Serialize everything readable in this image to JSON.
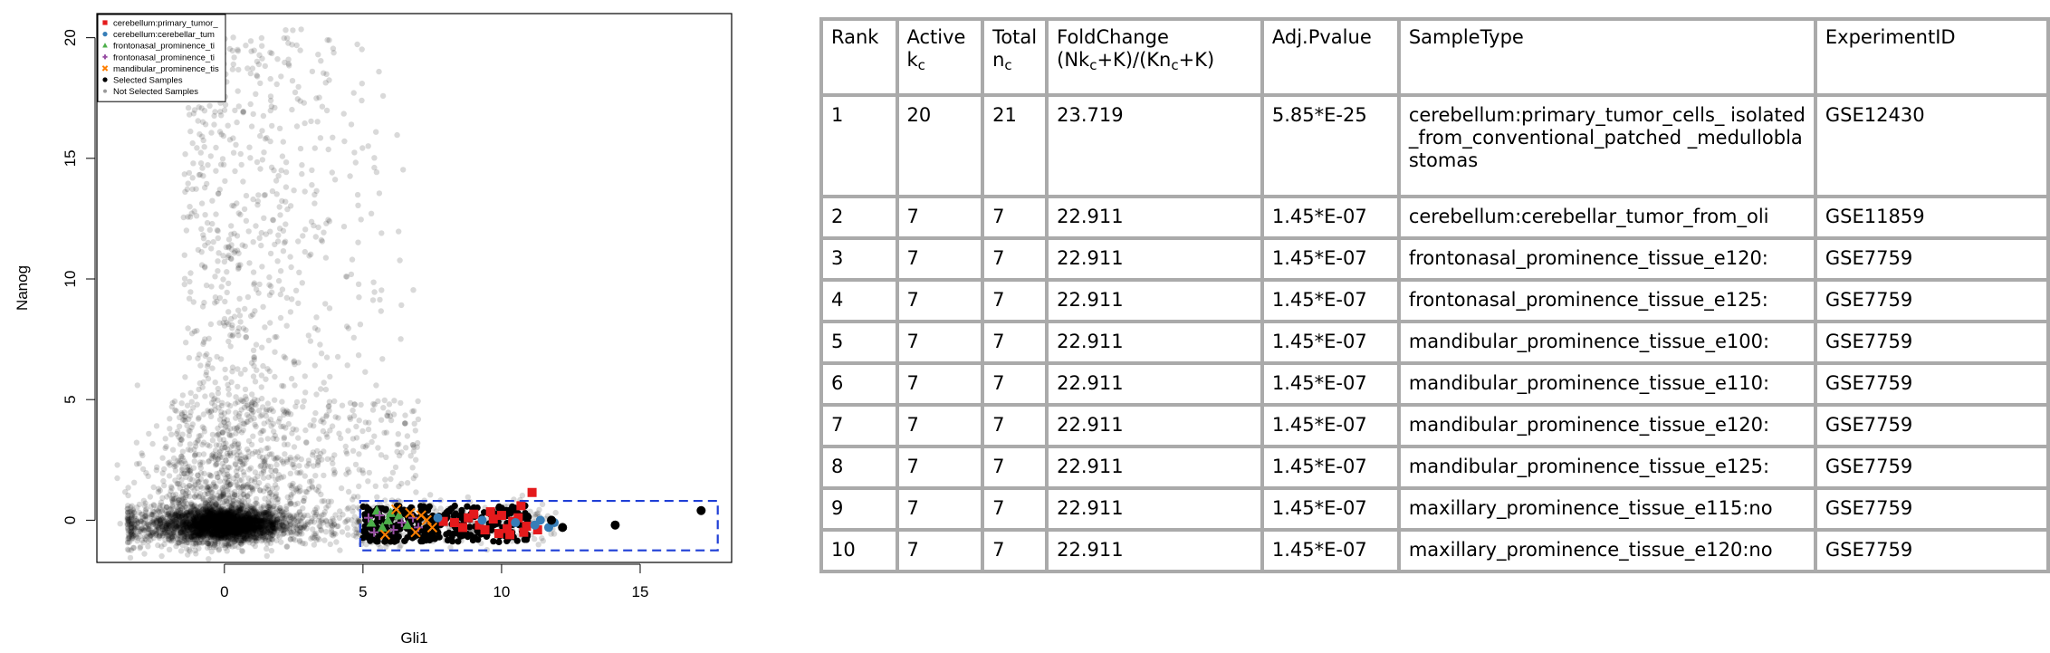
{
  "chart_data": {
    "type": "scatter",
    "xlabel": "Gli1",
    "ylabel": "Nanog",
    "xlim": [
      -4.6,
      18.3
    ],
    "ylim": [
      -1.75,
      21.0
    ],
    "xticks": [
      0,
      5,
      10,
      15
    ],
    "yticks": [
      0,
      5,
      10,
      15,
      20
    ],
    "grid": false,
    "legend_position": "top-left",
    "legend": [
      {
        "label": "cerebellum:primary_tumor_",
        "color": "#e41a1c",
        "marker": "square"
      },
      {
        "label": "cerebellum:cerebellar_tum",
        "color": "#377eb8",
        "marker": "circle"
      },
      {
        "label": "frontonasal_prominence_ti",
        "color": "#4daf4a",
        "marker": "triangle"
      },
      {
        "label": "frontonasal_prominence_ti",
        "color": "#984ea3",
        "marker": "plus"
      },
      {
        "label": "mandibular_prominence_tis",
        "color": "#ff7f00",
        "marker": "x"
      },
      {
        "label": "Selected Samples",
        "color": "#000000",
        "marker": "dot"
      },
      {
        "label": "Not Selected Samples",
        "color": "#999999",
        "marker": "small-dot"
      }
    ],
    "selection_box": {
      "x": [
        4.9,
        17.8
      ],
      "y": [
        -1.25,
        0.8
      ],
      "color": "#1f3fd6"
    },
    "background_cloud": {
      "center": [
        0,
        -0.2
      ],
      "tail_x_range": [
        -3.5,
        12
      ],
      "upper_region_x": [
        -1.5,
        7
      ],
      "upper_region_y": [
        4,
        20.5
      ]
    },
    "selected_cluster": {
      "x_range": [
        5,
        11
      ],
      "y_range": [
        -0.9,
        0.6
      ]
    },
    "series": [
      {
        "name": "cerebellum:primary_tumor_",
        "color": "#e41a1c",
        "points": [
          [
            11.1,
            1.15
          ],
          [
            10.7,
            0.6
          ],
          [
            9.6,
            0.35
          ],
          [
            10.4,
            -0.05
          ],
          [
            9.2,
            -0.2
          ],
          [
            8.8,
            0.1
          ],
          [
            10.2,
            -0.35
          ],
          [
            10.9,
            -0.25
          ],
          [
            9.9,
            -0.55
          ],
          [
            8.3,
            -0.1
          ],
          [
            10.6,
            0.1
          ],
          [
            9.4,
            -0.4
          ],
          [
            8.6,
            -0.3
          ],
          [
            10.0,
            0.2
          ],
          [
            11.3,
            -0.4
          ],
          [
            10.3,
            -0.6
          ],
          [
            9.0,
            0.25
          ],
          [
            7.9,
            -0.05
          ],
          [
            10.8,
            -0.5
          ],
          [
            9.7,
            0.05
          ]
        ]
      },
      {
        "name": "cerebellum:cerebellar_tum",
        "color": "#377eb8",
        "points": [
          [
            11.7,
            -0.3
          ],
          [
            11.4,
            0.0
          ],
          [
            11.9,
            -0.1
          ],
          [
            11.2,
            -0.2
          ],
          [
            10.5,
            -0.1
          ],
          [
            9.3,
            0.0
          ],
          [
            7.7,
            0.1
          ]
        ]
      },
      {
        "name": "frontonasal_prominence_ti",
        "color": "#4daf4a",
        "points": [
          [
            5.5,
            0.4
          ],
          [
            6.3,
            0.2
          ],
          [
            5.9,
            0.0
          ],
          [
            6.6,
            -0.2
          ],
          [
            5.3,
            -0.1
          ],
          [
            6.0,
            0.3
          ],
          [
            5.7,
            -0.3
          ]
        ]
      },
      {
        "name": "frontonasal_prominence_ti",
        "color": "#984ea3",
        "points": [
          [
            5.2,
            0.1
          ],
          [
            6.1,
            -0.4
          ],
          [
            6.8,
            0.1
          ],
          [
            5.6,
            0.2
          ],
          [
            6.4,
            -0.1
          ],
          [
            7.0,
            -0.3
          ],
          [
            5.4,
            -0.5
          ]
        ]
      },
      {
        "name": "mandibular_prominence_tis",
        "color": "#ff7f00",
        "points": [
          [
            6.9,
            -0.5
          ],
          [
            7.3,
            0.0
          ],
          [
            6.2,
            0.45
          ],
          [
            7.5,
            -0.3
          ],
          [
            6.7,
            0.3
          ],
          [
            7.1,
            0.2
          ],
          [
            5.8,
            -0.6
          ]
        ]
      },
      {
        "name": "Selected Samples",
        "color": "#000000",
        "points": [
          [
            17.2,
            0.4
          ],
          [
            14.1,
            -0.2
          ],
          [
            11.8,
            0.0
          ],
          [
            12.2,
            -0.3
          ]
        ]
      }
    ]
  },
  "table": {
    "headers": [
      {
        "line1": "Rank",
        "line2": "",
        "sub": ""
      },
      {
        "line1": "Active",
        "line2": "k",
        "sub": "c"
      },
      {
        "line1": "Total",
        "line2": "n",
        "sub": "c"
      },
      {
        "line1": "FoldChange",
        "line2": "(Nkₑ+K)/(Knₑ+K)",
        "sub": ""
      },
      {
        "line1": "Adj.Pvalue",
        "line2": "",
        "sub": ""
      },
      {
        "line1": "SampleType",
        "line2": "",
        "sub": ""
      },
      {
        "line1": "ExperimentID",
        "line2": "",
        "sub": ""
      }
    ],
    "foldchange_header": {
      "a": "(Nk",
      "b": "+K)/(Kn",
      "c": "+K)",
      "sub": "c"
    },
    "rows": [
      {
        "rank": "1",
        "active": "20",
        "total": "21",
        "fold": "23.719",
        "pval": "5.85*E-25",
        "sample": "cerebellum:primary_tumor_cells_ isolated_from_conventional_patched _medulloblastomas",
        "exp": "GSE12430"
      },
      {
        "rank": "2",
        "active": "7",
        "total": "7",
        "fold": "22.911",
        "pval": "1.45*E-07",
        "sample": "cerebellum:cerebellar_tumor_from_oli",
        "exp": "GSE11859"
      },
      {
        "rank": "3",
        "active": "7",
        "total": "7",
        "fold": "22.911",
        "pval": "1.45*E-07",
        "sample": "frontonasal_prominence_tissue_e120:",
        "exp": "GSE7759"
      },
      {
        "rank": "4",
        "active": "7",
        "total": "7",
        "fold": "22.911",
        "pval": "1.45*E-07",
        "sample": "frontonasal_prominence_tissue_e125:",
        "exp": "GSE7759"
      },
      {
        "rank": "5",
        "active": "7",
        "total": "7",
        "fold": "22.911",
        "pval": "1.45*E-07",
        "sample": "mandibular_prominence_tissue_e100:",
        "exp": "GSE7759"
      },
      {
        "rank": "6",
        "active": "7",
        "total": "7",
        "fold": "22.911",
        "pval": "1.45*E-07",
        "sample": "mandibular_prominence_tissue_e110:",
        "exp": "GSE7759"
      },
      {
        "rank": "7",
        "active": "7",
        "total": "7",
        "fold": "22.911",
        "pval": "1.45*E-07",
        "sample": "mandibular_prominence_tissue_e120:",
        "exp": "GSE7759"
      },
      {
        "rank": "8",
        "active": "7",
        "total": "7",
        "fold": "22.911",
        "pval": "1.45*E-07",
        "sample": "mandibular_prominence_tissue_e125:",
        "exp": "GSE7759"
      },
      {
        "rank": "9",
        "active": "7",
        "total": "7",
        "fold": "22.911",
        "pval": "1.45*E-07",
        "sample": "maxillary_prominence_tissue_e115:no",
        "exp": "GSE7759"
      },
      {
        "rank": "10",
        "active": "7",
        "total": "7",
        "fold": "22.911",
        "pval": "1.45*E-07",
        "sample": "maxillary_prominence_tissue_e120:no",
        "exp": "GSE7759"
      }
    ]
  }
}
